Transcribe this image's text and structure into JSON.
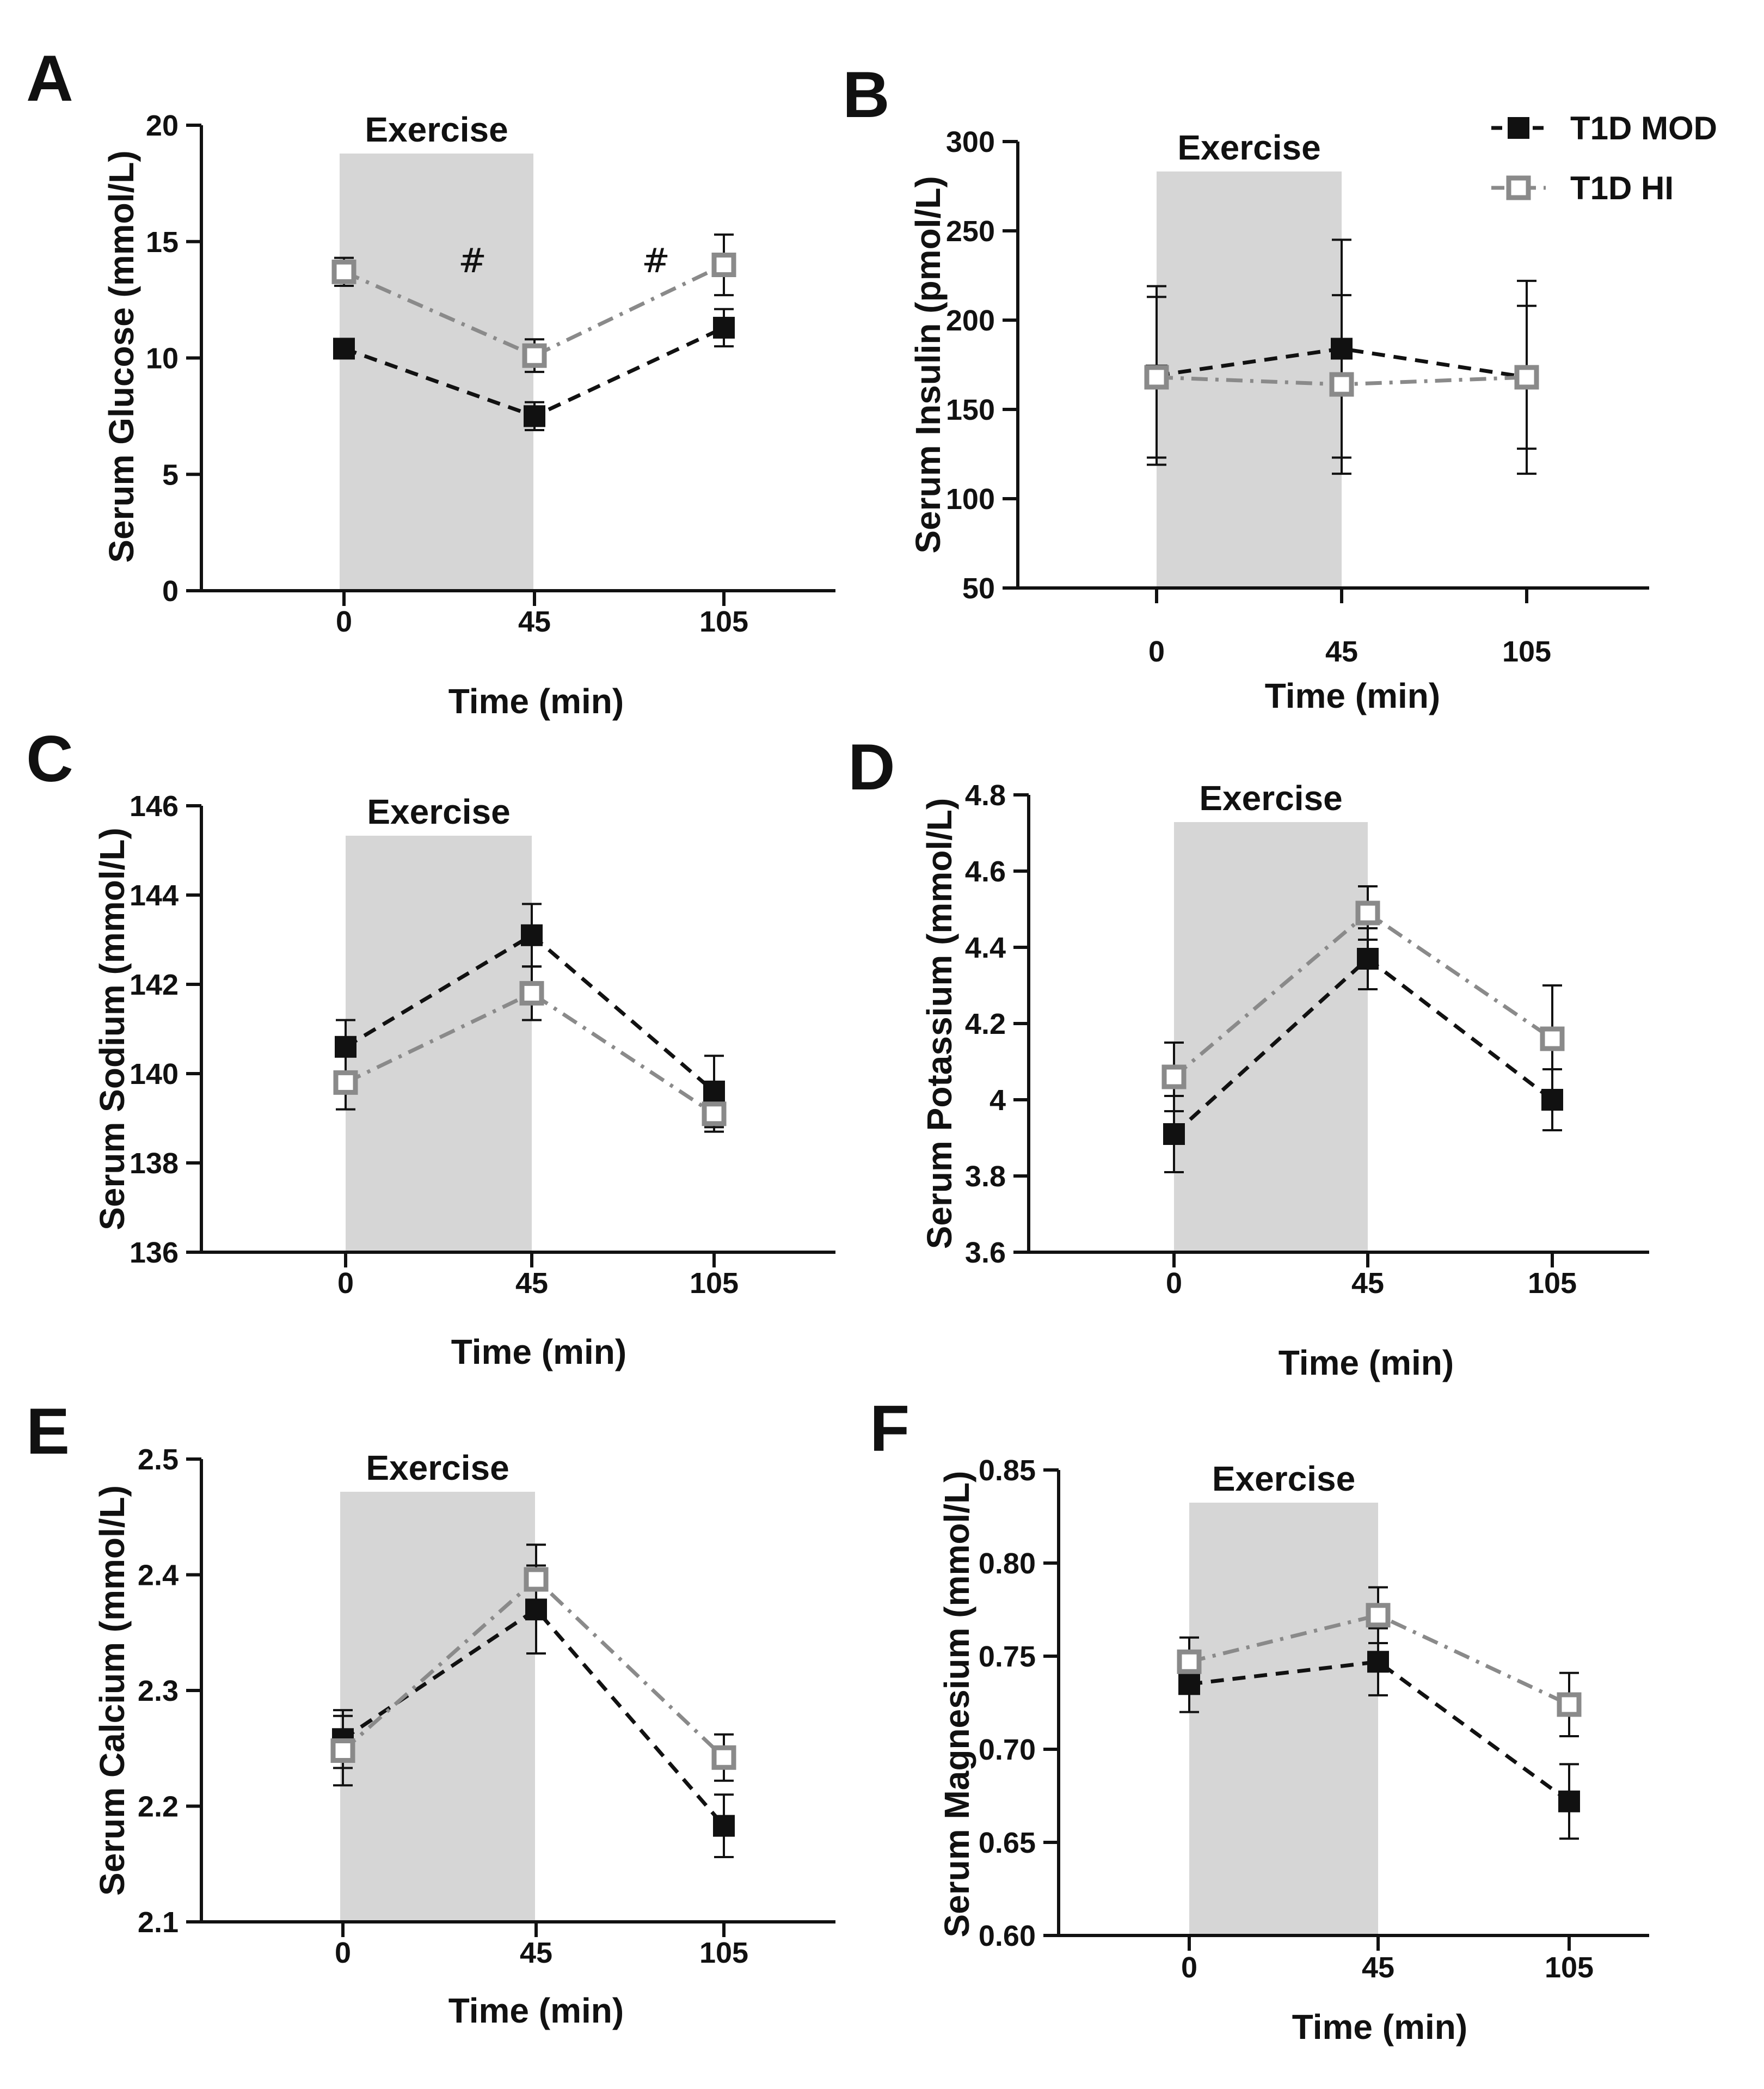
{
  "figure": {
    "legend": [
      {
        "name": "T1D MOD",
        "marker": "square-filled",
        "color": "#111111",
        "dash": "dashed"
      },
      {
        "name": "T1D HI",
        "marker": "square-open",
        "color": "#8a8a8a",
        "dash": "dashdot"
      }
    ],
    "colors": {
      "exercise_band": "#d6d6d6",
      "mod": "#111111",
      "hi": "#8a8a8a",
      "axis": "#111111"
    }
  },
  "chart_data": [
    {
      "panel": "A",
      "type": "line",
      "title": "",
      "xlabel": "Time (min)",
      "ylabel": "Serum Glucose (mmol/L)",
      "categories": [
        "0",
        "45",
        "105"
      ],
      "shaded_label": "Exercise",
      "ylim": [
        0,
        20
      ],
      "yticks": [
        0,
        5,
        10,
        15,
        20
      ],
      "series": [
        {
          "name": "T1D MOD",
          "values": [
            10.4,
            7.5,
            11.3
          ],
          "err": [
            0.4,
            0.6,
            0.8
          ]
        },
        {
          "name": "T1D HI",
          "values": [
            13.7,
            10.1,
            14.0
          ],
          "err": [
            0.6,
            0.7,
            1.3
          ]
        }
      ],
      "annotations": [
        "#",
        "#"
      ]
    },
    {
      "panel": "B",
      "type": "line",
      "title": "",
      "xlabel": "Time (min)",
      "ylabel": "Serum Insulin (pmol/L)",
      "categories": [
        "0",
        "45",
        "105"
      ],
      "shaded_label": "Exercise",
      "ylim": [
        50,
        300
      ],
      "yticks": [
        50,
        100,
        150,
        200,
        250,
        300
      ],
      "series": [
        {
          "name": "T1D MOD",
          "values": [
            169,
            184,
            168
          ],
          "err": [
            50,
            61,
            40
          ]
        },
        {
          "name": "T1D HI",
          "values": [
            168,
            164,
            168
          ],
          "err": [
            45,
            50,
            54
          ]
        }
      ],
      "annotations": []
    },
    {
      "panel": "C",
      "type": "line",
      "title": "",
      "xlabel": "Time (min)",
      "ylabel": "Serum Sodium (mmol/L)",
      "categories": [
        "0",
        "45",
        "105"
      ],
      "shaded_label": "Exercise",
      "ylim": [
        136,
        146
      ],
      "yticks": [
        136,
        138,
        140,
        142,
        144,
        146
      ],
      "series": [
        {
          "name": "T1D MOD",
          "values": [
            140.6,
            143.1,
            139.6
          ],
          "err": [
            0.6,
            0.7,
            0.8
          ]
        },
        {
          "name": "T1D HI",
          "values": [
            139.8,
            141.8,
            139.1
          ],
          "err": [
            0.6,
            0.6,
            0.4
          ]
        }
      ],
      "annotations": []
    },
    {
      "panel": "D",
      "type": "line",
      "title": "",
      "xlabel": "Time (min)",
      "ylabel": "Serum Potassium (mmol/L)",
      "categories": [
        "0",
        "45",
        "105"
      ],
      "shaded_label": "Exercise",
      "ylim": [
        3.6,
        4.8
      ],
      "yticks": [
        3.6,
        3.8,
        4.0,
        4.2,
        4.4,
        4.6,
        4.8
      ],
      "series": [
        {
          "name": "T1D MOD",
          "values": [
            3.91,
            4.37,
            4.0
          ],
          "err": [
            0.1,
            0.08,
            0.08
          ]
        },
        {
          "name": "T1D HI",
          "values": [
            4.06,
            4.49,
            4.16
          ],
          "err": [
            0.09,
            0.07,
            0.14
          ]
        }
      ],
      "annotations": []
    },
    {
      "panel": "E",
      "type": "line",
      "title": "",
      "xlabel": "Time (min)",
      "ylabel": "Serum Calcium (mmol/L)",
      "categories": [
        "0",
        "45",
        "105"
      ],
      "shaded_label": "Exercise",
      "ylim": [
        2.1,
        2.5
      ],
      "yticks": [
        2.1,
        2.2,
        2.3,
        2.4,
        2.5
      ],
      "series": [
        {
          "name": "T1D MOD",
          "values": [
            2.258,
            2.37,
            2.183
          ],
          "err": [
            0.025,
            0.038,
            0.027
          ]
        },
        {
          "name": "T1D HI",
          "values": [
            2.248,
            2.396,
            2.242
          ],
          "err": [
            0.03,
            0.03,
            0.02
          ]
        }
      ],
      "annotations": []
    },
    {
      "panel": "F",
      "type": "line",
      "title": "",
      "xlabel": "Time (min)",
      "ylabel": "Serum Magnesium (mmol/L)",
      "categories": [
        "0",
        "45",
        "105"
      ],
      "shaded_label": "Exercise",
      "ylim": [
        0.6,
        0.85
      ],
      "yticks": [
        0.6,
        0.65,
        0.7,
        0.75,
        0.8,
        0.85
      ],
      "ytick_labels": [
        "0.60",
        "0.65",
        "0.70",
        "0.75",
        "0.80",
        "0.85"
      ],
      "series": [
        {
          "name": "T1D MOD",
          "values": [
            0.735,
            0.747,
            0.672
          ],
          "err": [
            0.015,
            0.018,
            0.02
          ]
        },
        {
          "name": "T1D HI",
          "values": [
            0.747,
            0.772,
            0.724
          ],
          "err": [
            0.013,
            0.015,
            0.017
          ]
        }
      ],
      "annotations": []
    }
  ]
}
